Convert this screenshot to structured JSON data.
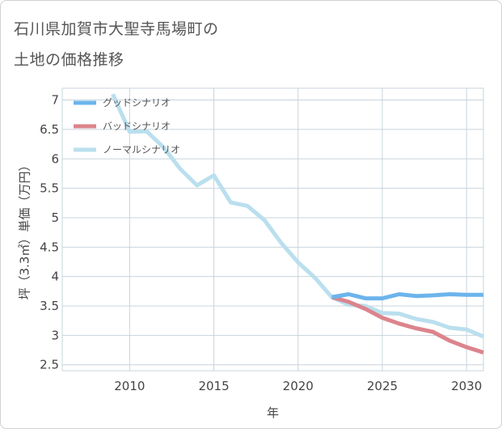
{
  "title_line1": "石川県加賀市大聖寺馬場町の",
  "title_line2": "土地の価格推移",
  "colors": {
    "good": "#6cb4ec",
    "bad": "#dc848c",
    "normal": "#badfee",
    "grid": "#c8d4dc",
    "text": "#444444"
  },
  "chart_data": {
    "type": "line",
    "xlabel": "年",
    "ylabel": "坪（3.3㎡）単価（万円）",
    "xlim": [
      2006,
      2031
    ],
    "ylim": [
      2.4,
      7.2
    ],
    "xticks": [
      2010,
      2015,
      2020,
      2025,
      2030
    ],
    "yticks": [
      2.5,
      3,
      3.5,
      4,
      4.5,
      5,
      5.5,
      6,
      6.5,
      7
    ],
    "xtick_labels": [
      "2010",
      "2015",
      "2020",
      "2025",
      "2030"
    ],
    "ytick_labels": [
      "2.5",
      "3",
      "3.5",
      "4",
      "4.5",
      "5",
      "5.5",
      "6",
      "6.5",
      "7"
    ],
    "grid": true,
    "legend_position": "top-left",
    "series": [
      {
        "name": "グッドシナリオ",
        "color_key": "good",
        "x": [
          2022,
          2023,
          2024,
          2025,
          2026,
          2027,
          2028,
          2029,
          2030,
          2031
        ],
        "y": [
          3.65,
          3.7,
          3.63,
          3.63,
          3.7,
          3.67,
          3.68,
          3.7,
          3.69,
          3.69
        ]
      },
      {
        "name": "バッドシナリオ",
        "color_key": "bad",
        "x": [
          2022,
          2023,
          2024,
          2025,
          2026,
          2027,
          2028,
          2029,
          2030,
          2031
        ],
        "y": [
          3.65,
          3.57,
          3.45,
          3.3,
          3.2,
          3.12,
          3.06,
          2.91,
          2.8,
          2.71
        ]
      },
      {
        "name": "ノーマルシナリオ",
        "color_key": "normal",
        "x": [
          2009,
          2010,
          2011,
          2012,
          2013,
          2014,
          2015,
          2016,
          2017,
          2018,
          2019,
          2020,
          2021,
          2022,
          2023,
          2024,
          2025,
          2026,
          2027,
          2028,
          2029,
          2030,
          2031
        ],
        "y": [
          7.1,
          6.46,
          6.47,
          6.2,
          5.83,
          5.55,
          5.72,
          5.26,
          5.2,
          4.96,
          4.57,
          4.24,
          3.98,
          3.65,
          3.52,
          3.5,
          3.38,
          3.37,
          3.28,
          3.23,
          3.13,
          3.1,
          2.98
        ]
      }
    ]
  }
}
